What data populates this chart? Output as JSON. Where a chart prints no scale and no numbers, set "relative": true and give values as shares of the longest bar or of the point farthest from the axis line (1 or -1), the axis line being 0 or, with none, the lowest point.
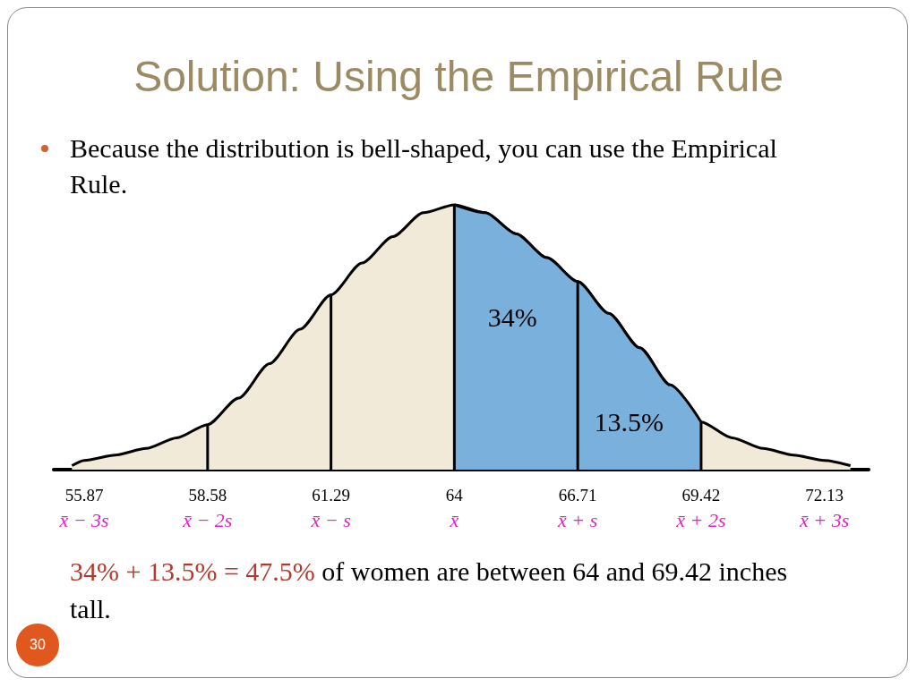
{
  "chart_data": {
    "type": "area",
    "title": "Solution: Using the Empirical Rule",
    "subtitle": "Because the distribution is bell-shaped, you can use the Empirical Rule.",
    "relative": true,
    "x": [
      55.6,
      55.87,
      56.55,
      57.23,
      57.9,
      58.58,
      59.26,
      59.94,
      60.61,
      61.29,
      61.97,
      62.65,
      63.32,
      64,
      64.68,
      65.36,
      66.03,
      66.71,
      67.39,
      68.07,
      68.74,
      69.42,
      70.1,
      70.78,
      71.45,
      72.13,
      72.7
    ],
    "series": [
      {
        "color": "#f2ead8",
        "values": [
          0.015,
          0.035,
          0.055,
          0.08,
          0.12,
          0.17,
          0.27,
          0.4,
          0.53,
          0.66,
          0.78,
          0.88,
          0.97,
          1,
          0.97,
          0.89,
          0.8,
          0.71,
          0.59,
          0.46,
          0.32,
          0.18,
          0.12,
          0.08,
          0.055,
          0.035,
          0.015
        ]
      },
      {
        "color": "#7ab0dc",
        "x": [
          64,
          64.68,
          65.36,
          66.03,
          66.71,
          67.39,
          68.07,
          68.74,
          69.42
        ],
        "values": [
          1,
          0.97,
          0.89,
          0.8,
          0.71,
          0.59,
          0.46,
          0.32,
          0.18
        ]
      }
    ],
    "xlim": [
      55.2,
      73.1
    ],
    "xticks": [
      {
        "value": 55.87,
        "label": "55.87\nx̄ − 3s"
      },
      {
        "value": 58.58,
        "label": "58.58\nx̄ − 2s"
      },
      {
        "value": 61.29,
        "label": "61.29\nx̄ − s"
      },
      {
        "value": 64,
        "label": "64\nx̄"
      },
      {
        "value": 66.71,
        "label": "66.71\nx̄ + s"
      },
      {
        "value": 69.42,
        "label": "69.42\nx̄ + 2s"
      },
      {
        "value": 72.13,
        "label": "72.13\nx̄ + 3s"
      }
    ],
    "ref_lines": [
      {
        "axis": "x",
        "value": 58.58,
        "color": "#000000"
      },
      {
        "axis": "x",
        "value": 61.29,
        "color": "#000000"
      },
      {
        "axis": "x",
        "value": 64,
        "color": "#000000"
      },
      {
        "axis": "x",
        "value": 66.71,
        "color": "#000000"
      },
      {
        "axis": "x",
        "value": 69.42,
        "color": "#000000"
      }
    ],
    "annotations": [
      "34%",
      "13.5%",
      "34% + 13.5% = 47.5%",
      "of women are between 64 and 69.42 inches tall.",
      "30"
    ],
    "grid": false
  }
}
